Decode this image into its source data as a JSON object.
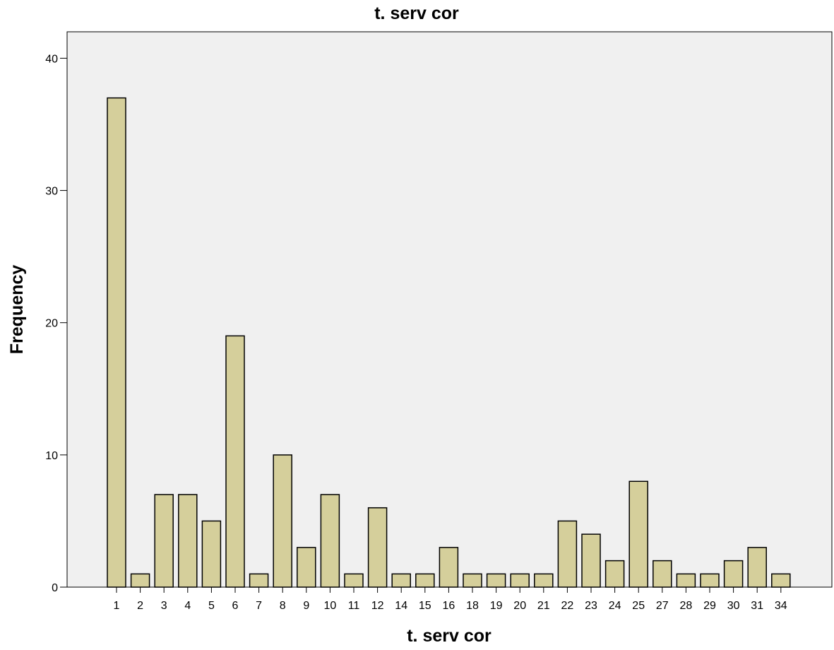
{
  "chart_data": {
    "type": "bar",
    "title": "t. serv cor",
    "xlabel": "t. serv cor",
    "ylabel": "Frequency",
    "ylim": [
      0,
      42
    ],
    "yticks": [
      0,
      10,
      20,
      30,
      40
    ],
    "grid": false,
    "legend": "none",
    "categories": [
      "1",
      "2",
      "3",
      "4",
      "5",
      "6",
      "7",
      "8",
      "9",
      "10",
      "11",
      "12",
      "14",
      "15",
      "16",
      "18",
      "19",
      "20",
      "21",
      "22",
      "23",
      "24",
      "25",
      "27",
      "28",
      "29",
      "30",
      "31",
      "34"
    ],
    "values": [
      37,
      1,
      7,
      7,
      5,
      19,
      1,
      10,
      3,
      7,
      1,
      6,
      1,
      1,
      3,
      1,
      1,
      1,
      1,
      5,
      4,
      2,
      8,
      2,
      1,
      1,
      2,
      3,
      1
    ]
  },
  "colors": {
    "bar_fill": "#d5cf9b",
    "bar_stroke": "#000000",
    "plot_background": "#f0f0f0",
    "axis": "#000000"
  }
}
